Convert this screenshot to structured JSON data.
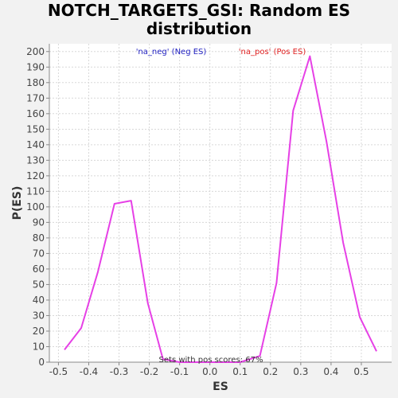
{
  "chart_data": {
    "type": "line",
    "title_lines": [
      "NOTCH_TARGETS_GSI: Random ES",
      "distribution"
    ],
    "xlabel": "ES",
    "ylabel": "P(ES)",
    "xlim": [
      -0.53,
      0.6
    ],
    "ylim": [
      0,
      205
    ],
    "x_ticks": [
      -0.5,
      -0.4,
      -0.3,
      -0.2,
      -0.1,
      0.0,
      0.1,
      0.2,
      0.3,
      0.4,
      0.5
    ],
    "x_tick_labels": [
      "-0.5",
      "-0.4",
      "-0.3",
      "-0.2",
      "-0.1",
      "0.0",
      "0.1",
      "0.2",
      "0.3",
      "0.4",
      "0.5"
    ],
    "y_ticks": [
      0,
      10,
      20,
      30,
      40,
      50,
      60,
      70,
      80,
      90,
      100,
      110,
      120,
      130,
      140,
      150,
      160,
      170,
      180,
      190,
      200
    ],
    "y_tick_labels": [
      "0",
      "10",
      "20",
      "30",
      "40",
      "50",
      "60",
      "70",
      "80",
      "90",
      "100",
      "110",
      "120",
      "130",
      "140",
      "150",
      "160",
      "170",
      "180",
      "190",
      "200"
    ],
    "grid": true,
    "series": [
      {
        "name": "distribution",
        "color": "#e640e6",
        "x": [
          -0.48,
          -0.425,
          -0.37,
          -0.315,
          -0.26,
          -0.205,
          -0.155,
          -0.1,
          -0.05,
          0.0,
          0.05,
          0.1,
          0.165,
          0.22,
          0.275,
          0.33,
          0.385,
          0.44,
          0.495,
          0.55
        ],
        "y": [
          8,
          22,
          58,
          102,
          104,
          38,
          2,
          0,
          0,
          0,
          0,
          0,
          4,
          51,
          162,
          197,
          142,
          77,
          29,
          7
        ]
      }
    ],
    "legend": {
      "neg_label": "'na_neg' (Neg ES)",
      "neg_color": "#2020c0",
      "pos_label": "'na_pos' (Pos ES)",
      "pos_color": "#e02020"
    },
    "annotation": "Sets with pos scores: 67%"
  }
}
